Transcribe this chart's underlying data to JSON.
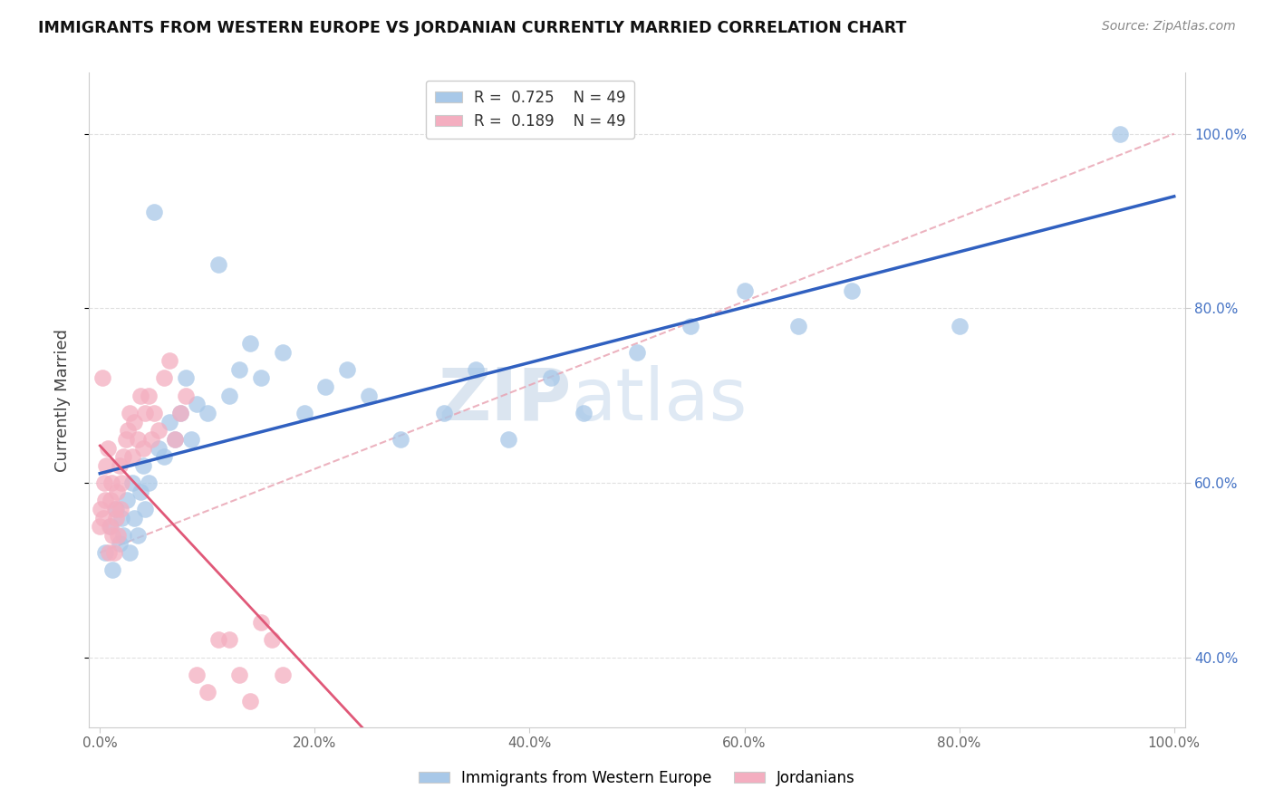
{
  "title": "IMMIGRANTS FROM WESTERN EUROPE VS JORDANIAN CURRENTLY MARRIED CORRELATION CHART",
  "source": "Source: ZipAtlas.com",
  "ylabel": "Currently Married",
  "xtick_labels": [
    "0.0%",
    "20.0%",
    "40.0%",
    "60.0%",
    "80.0%",
    "100.0%"
  ],
  "ytick_labels": [
    "40.0%",
    "60.0%",
    "80.0%",
    "100.0%"
  ],
  "ytick_pos": [
    0.4,
    0.6,
    0.8,
    1.0
  ],
  "xtick_pos": [
    0.0,
    0.2,
    0.4,
    0.6,
    0.8,
    1.0
  ],
  "legend_label_blue": "Immigrants from Western Europe",
  "legend_label_pink": "Jordanians",
  "blue_color": "#a8c8e8",
  "pink_color": "#f4aec0",
  "line_blue": "#3060c0",
  "line_pink": "#e05878",
  "line_dashed_color": "#e8a0b0",
  "watermark_zip": "ZIP",
  "watermark_atlas": "atlas",
  "grid_color": "#e0e0e0",
  "background_color": "#ffffff",
  "blue_x": [
    0.005,
    0.01,
    0.012,
    0.015,
    0.018,
    0.02,
    0.022,
    0.025,
    0.028,
    0.03,
    0.032,
    0.035,
    0.038,
    0.04,
    0.042,
    0.045,
    0.05,
    0.055,
    0.06,
    0.065,
    0.07,
    0.075,
    0.08,
    0.085,
    0.09,
    0.1,
    0.11,
    0.12,
    0.13,
    0.14,
    0.15,
    0.17,
    0.19,
    0.21,
    0.23,
    0.25,
    0.28,
    0.32,
    0.35,
    0.38,
    0.42,
    0.45,
    0.5,
    0.55,
    0.6,
    0.65,
    0.7,
    0.8,
    0.95
  ],
  "blue_y": [
    0.52,
    0.55,
    0.5,
    0.57,
    0.53,
    0.56,
    0.54,
    0.58,
    0.52,
    0.6,
    0.56,
    0.54,
    0.59,
    0.62,
    0.57,
    0.6,
    0.91,
    0.64,
    0.63,
    0.67,
    0.65,
    0.68,
    0.72,
    0.65,
    0.69,
    0.68,
    0.85,
    0.7,
    0.73,
    0.76,
    0.72,
    0.75,
    0.68,
    0.71,
    0.73,
    0.7,
    0.65,
    0.68,
    0.73,
    0.65,
    0.72,
    0.68,
    0.75,
    0.78,
    0.82,
    0.78,
    0.82,
    0.78,
    1.0
  ],
  "pink_x": [
    0.0,
    0.001,
    0.002,
    0.003,
    0.004,
    0.005,
    0.006,
    0.007,
    0.008,
    0.009,
    0.01,
    0.011,
    0.012,
    0.013,
    0.014,
    0.015,
    0.016,
    0.017,
    0.018,
    0.019,
    0.02,
    0.022,
    0.024,
    0.026,
    0.028,
    0.03,
    0.032,
    0.035,
    0.038,
    0.04,
    0.042,
    0.045,
    0.048,
    0.05,
    0.055,
    0.06,
    0.065,
    0.07,
    0.075,
    0.08,
    0.09,
    0.1,
    0.11,
    0.12,
    0.13,
    0.14,
    0.15,
    0.16,
    0.17
  ],
  "pink_y": [
    0.55,
    0.57,
    0.72,
    0.56,
    0.6,
    0.58,
    0.62,
    0.64,
    0.52,
    0.55,
    0.58,
    0.6,
    0.54,
    0.52,
    0.57,
    0.56,
    0.59,
    0.54,
    0.62,
    0.57,
    0.6,
    0.63,
    0.65,
    0.66,
    0.68,
    0.63,
    0.67,
    0.65,
    0.7,
    0.64,
    0.68,
    0.7,
    0.65,
    0.68,
    0.66,
    0.72,
    0.74,
    0.65,
    0.68,
    0.7,
    0.38,
    0.36,
    0.42,
    0.42,
    0.38,
    0.35,
    0.44,
    0.42,
    0.38
  ]
}
